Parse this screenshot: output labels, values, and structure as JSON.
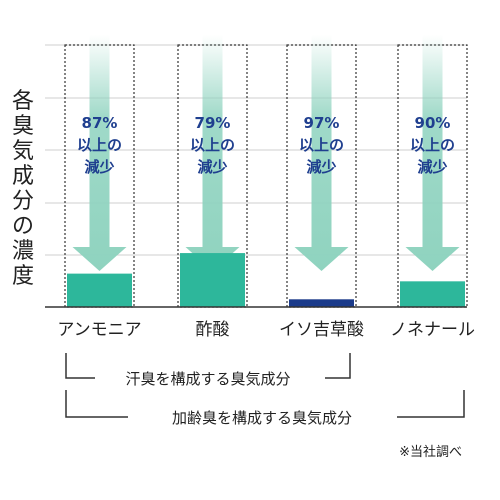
{
  "chart_data": {
    "type": "bar",
    "ylabel": "各臭気成分の濃度",
    "categories": [
      "アンモニア",
      "酢酸",
      "イソ吉草酸",
      "ノネナール"
    ],
    "reduction_labels": [
      [
        "87%",
        "以上の",
        "減少"
      ],
      [
        "79%",
        "以上の",
        "減少"
      ],
      [
        "97%",
        "以上の",
        "減少"
      ],
      [
        "90%",
        "以上の",
        "減少"
      ]
    ],
    "reduction_percent": [
      87,
      79,
      97,
      90
    ],
    "bar_colors": [
      "#2db79b",
      "#2db79b",
      "#1a3a8a",
      "#2db79b"
    ],
    "arrow_color": "#8fd3bf",
    "label_color": "#1f3f8f",
    "grid": true
  },
  "brackets": [
    {
      "label": "汗臭を構成する臭気成分"
    },
    {
      "label": "加齢臭を構成する臭気成分"
    }
  ],
  "note": "※当社調べ"
}
